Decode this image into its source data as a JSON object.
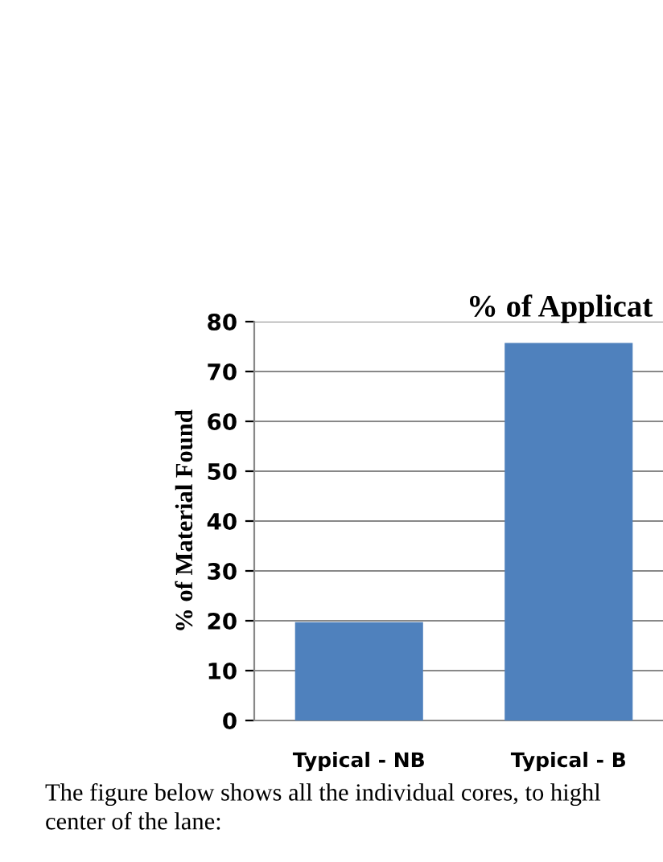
{
  "chart_data": {
    "type": "bar",
    "title": "% of Applicat",
    "ylabel": "% of Material Found",
    "categories": [
      "Typical - NB",
      "Typical - B"
    ],
    "values": [
      19.5,
      75.5
    ],
    "color": "#4f81bd",
    "ylim": [
      0,
      80
    ],
    "yticks": [
      0,
      10,
      20,
      30,
      40,
      50,
      60,
      70,
      80
    ],
    "grid": "y",
    "annotations": [
      "The figure below shows all the individual cores, to highl",
      "center of the lane:"
    ]
  }
}
